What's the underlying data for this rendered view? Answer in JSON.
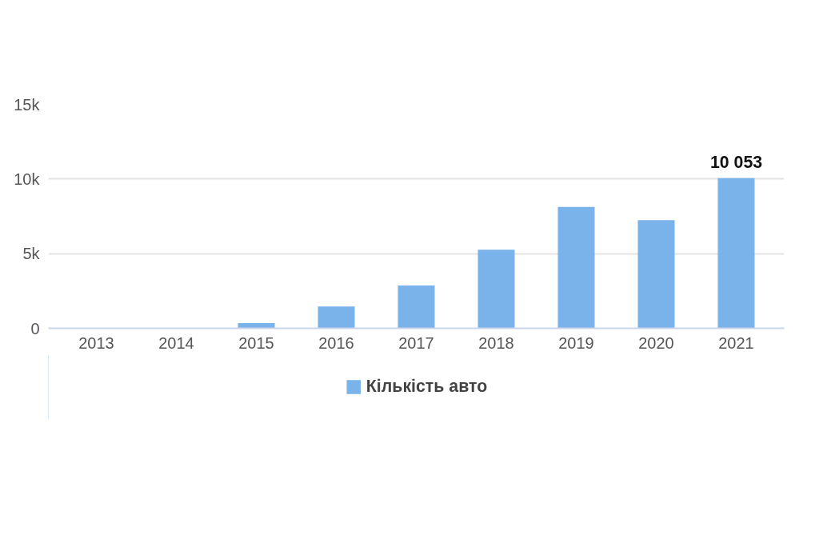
{
  "chart_data": {
    "type": "bar",
    "categories": [
      "2013",
      "2014",
      "2015",
      "2016",
      "2017",
      "2018",
      "2019",
      "2020",
      "2021"
    ],
    "series": [
      {
        "name": "Кількість авто",
        "color": "#7ab3ea",
        "values": [
          0,
          0,
          350,
          1460,
          2870,
          5260,
          8130,
          7250,
          10053
        ],
        "value_labels": [
          null,
          null,
          null,
          null,
          null,
          null,
          null,
          null,
          "10 053"
        ]
      }
    ],
    "ylim": [
      0,
      15000
    ],
    "yticks": [
      0,
      {
        "value": 5000,
        "label": "5k"
      },
      {
        "value": 10000,
        "label": "10k"
      },
      {
        "value": 15000,
        "label": "15k"
      }
    ],
    "grid": "y",
    "legend": "bottom"
  }
}
